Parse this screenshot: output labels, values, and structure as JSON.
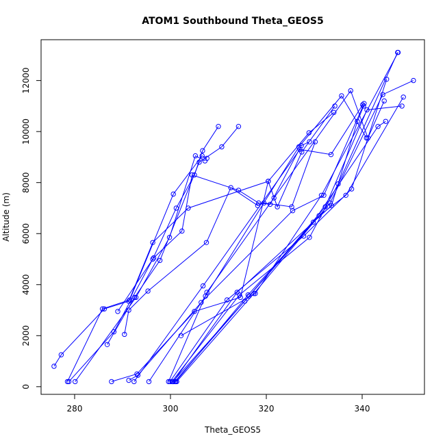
{
  "chart_data": {
    "type": "scatter",
    "title": "ATOM1 Southbound Theta_GEOS5",
    "xlabel": "Theta_GEOS5",
    "ylabel": "Altitude (m)",
    "xlim": [
      273,
      353
    ],
    "ylim": [
      -300,
      13600
    ],
    "xticks": [
      280,
      300,
      320,
      340
    ],
    "yticks": [
      0,
      2000,
      4000,
      6000,
      8000,
      10000,
      12000
    ],
    "grid": false,
    "style": {
      "color": "#0000ff",
      "marker": "open-circle",
      "connect": "lines"
    },
    "series": [
      {
        "x": [
          275.7,
          277.2,
          286.2,
          291.3,
          296.3,
          303.7,
          320.4,
          328.9,
          334.1
        ],
        "y": [
          800,
          1250,
          3050,
          3350,
          5650,
          7000,
          8050,
          9950,
          10750
        ]
      },
      {
        "x": [
          278.5,
          285.8,
          291.5,
          300.6,
          306.6,
          307.6
        ],
        "y": [
          200,
          3050,
          3400,
          7550,
          9050,
          8950
        ]
      },
      {
        "x": [
          278.8,
          288.2,
          296.3,
          301.2,
          305.0,
          306.7,
          310.0
        ],
        "y": [
          200,
          2150,
          5000,
          7000,
          8300,
          9250,
          10200
        ]
      },
      {
        "x": [
          280.1,
          292.8,
          299.8,
          305.2,
          307.2
        ],
        "y": [
          200,
          3500,
          5850,
          9050,
          8850
        ]
      },
      {
        "x": [
          286.8,
          292.5,
          297.8,
          306.0,
          310.7,
          314.2
        ],
        "y": [
          1650,
          3500,
          4950,
          8800,
          9400,
          10200
        ]
      },
      {
        "x": [
          289.0,
          296.5,
          302.4,
          304.5,
          314.2,
          318.4,
          320.8,
          327.3,
          329.0
        ],
        "y": [
          2950,
          5050,
          6100,
          8300,
          7700,
          7200,
          7150,
          9450,
          9600
        ]
      },
      {
        "x": [
          290.4,
          291.3,
          295.3,
          307.5,
          312.6,
          318.2,
          319.5,
          325.3,
          330.2
        ],
        "y": [
          2050,
          3000,
          3750,
          5650,
          7800,
          7100,
          7200,
          7050,
          9600
        ]
      },
      {
        "x": [
          287.7,
          293.0,
          305.0,
          314.6,
          320.4,
          322.3,
          327.4,
          334.3
        ],
        "y": [
          200,
          500,
          2950,
          3500,
          8050,
          7050,
          9200,
          11000
        ]
      },
      {
        "x": [
          291.3,
          293.2,
          306.4,
          325.5,
          332.0,
          340.4
        ],
        "y": [
          250,
          450,
          3300,
          6900,
          7500,
          11100
        ]
      },
      {
        "x": [
          292.4,
          306.8,
          327.0,
          333.5,
          340.1
        ],
        "y": [
          200,
          3950,
          9300,
          9100,
          11050
        ]
      },
      {
        "x": [
          295.5,
          307.3,
          326.8,
          335.7,
          340.9
        ],
        "y": [
          200,
          3550,
          9400,
          11400,
          9750
        ]
      },
      {
        "x": [
          299.6,
          307.6,
          321.6,
          337.6,
          341.2,
          344.6
        ],
        "y": [
          200,
          3700,
          7400,
          11600,
          9750,
          11200
        ]
      },
      {
        "x": [
          299.9,
          311.8,
          327.8,
          337.8,
          345.1
        ],
        "y": [
          200,
          3400,
          5900,
          7750,
          12050
        ]
      },
      {
        "x": [
          300.3,
          314.4,
          329.0,
          335.0,
          347.4
        ],
        "y": [
          200,
          3600,
          5850,
          7950,
          13100
        ]
      },
      {
        "x": [
          300.5,
          315.5,
          331.0,
          336.6,
          348.6
        ],
        "y": [
          200,
          3350,
          6700,
          7500,
          11350
        ]
      },
      {
        "x": [
          300.9,
          316.4,
          332.3,
          341.0,
          348.3
        ],
        "y": [
          200,
          3550,
          7050,
          10850,
          11000
        ]
      },
      {
        "x": [
          301.3,
          317.4,
          333.3,
          344.3,
          350.7
        ],
        "y": [
          200,
          3650,
          7200,
          11450,
          12000
        ]
      },
      {
        "x": [
          301.1,
          316.2,
          329.8,
          343.3,
          344.9
        ],
        "y": [
          200,
          3600,
          6450,
          10200,
          10400
        ]
      },
      {
        "x": [
          300.6,
          313.9,
          333.6,
          339.0,
          340.3
        ],
        "y": [
          200,
          3700,
          7100,
          10400,
          11000
        ]
      },
      {
        "x": [
          302.2,
          317.7,
          331.5,
          347.5
        ],
        "y": [
          2000,
          3650,
          7500,
          13100
        ]
      }
    ]
  }
}
